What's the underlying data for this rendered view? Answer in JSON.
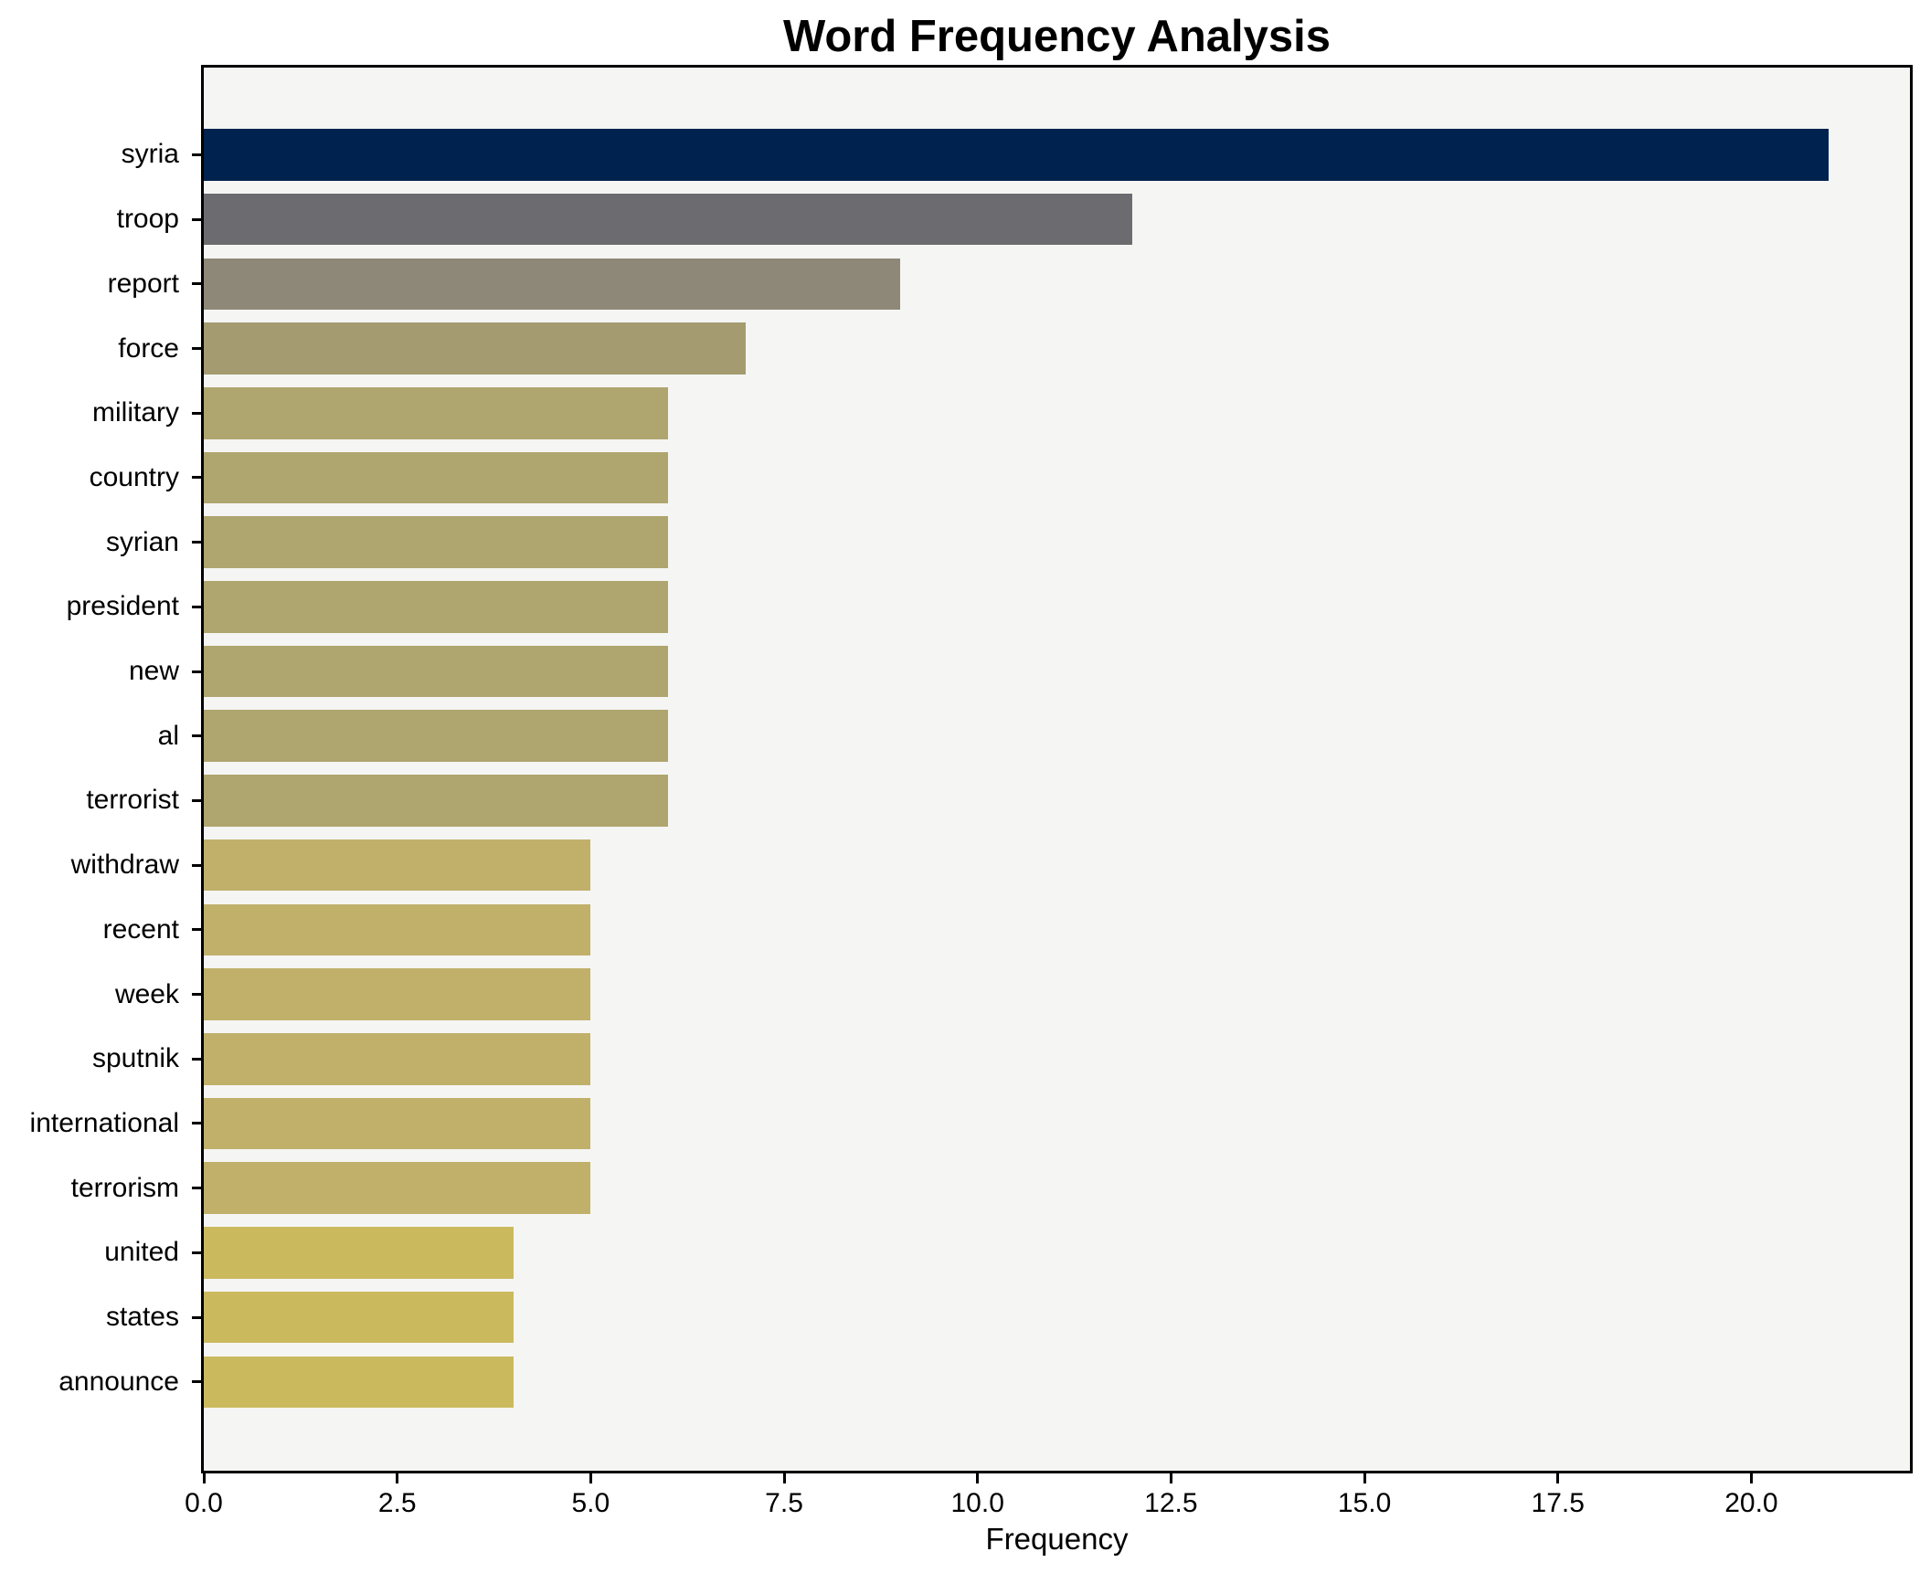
{
  "chart_data": {
    "type": "bar",
    "orientation": "horizontal",
    "title": "Word Frequency Analysis",
    "xlabel": "Frequency",
    "ylabel": "",
    "categories": [
      "syria",
      "troop",
      "report",
      "force",
      "military",
      "country",
      "syrian",
      "president",
      "new",
      "al",
      "terrorist",
      "withdraw",
      "recent",
      "week",
      "sputnik",
      "international",
      "terrorism",
      "united",
      "states",
      "announce"
    ],
    "values": [
      21,
      12,
      9,
      7,
      6,
      6,
      6,
      6,
      6,
      6,
      6,
      5,
      5,
      5,
      5,
      5,
      5,
      4,
      4,
      4
    ],
    "bar_colors": [
      "#00224e",
      "#6c6c70",
      "#8e8879",
      "#a49b71",
      "#afa56f",
      "#afa56f",
      "#afa56f",
      "#afa56f",
      "#afa56f",
      "#afa56f",
      "#afa56f",
      "#c0b06a",
      "#c0b06a",
      "#c0b06a",
      "#c0b06a",
      "#c0b06a",
      "#c0b06a",
      "#cbb95e",
      "#cbb95e",
      "#cbb95e"
    ],
    "xlim": [
      0,
      22.05
    ],
    "xticks": [
      0,
      2.5,
      5,
      7.5,
      10,
      12.5,
      15,
      17.5,
      20
    ],
    "xtick_labels": [
      "0.0",
      "2.5",
      "5.0",
      "7.5",
      "10.0",
      "12.5",
      "15.0",
      "17.5",
      "20.0"
    ],
    "grid": false,
    "legend": false,
    "plot_bg": "#f5f5f3",
    "fig_bg": "#ffffff"
  }
}
